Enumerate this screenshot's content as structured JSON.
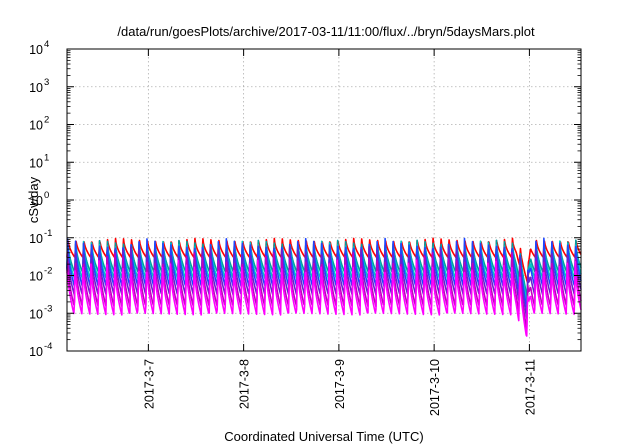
{
  "chart_data": {
    "type": "line",
    "title": "/data/run/goesPlots/archive/2017-03-11/11:00/flux/../bryn/5daysMars.plot",
    "xlabel": "Coordinated Universal Time (UTC)",
    "ylabel": "cSv/day",
    "yscale": "log",
    "ylim": [
      0.0001,
      10000
    ],
    "xlim": [
      "2017-03-06 03:30",
      "2017-03-11 13:00"
    ],
    "grid": true,
    "legend": "none",
    "x_ticks": [
      {
        "date": "2017-03-07",
        "label": "2017-3-7"
      },
      {
        "date": "2017-03-08",
        "label": "2017-3-8"
      },
      {
        "date": "2017-03-09",
        "label": "2017-3-9"
      },
      {
        "date": "2017-03-10",
        "label": "2017-3-10"
      },
      {
        "date": "2017-03-11",
        "label": "2017-3-11"
      }
    ],
    "y_ticks": [
      {
        "value": 0.0001,
        "base": "10",
        "exp": "-4"
      },
      {
        "value": 0.001,
        "base": "10",
        "exp": "-3"
      },
      {
        "value": 0.01,
        "base": "10",
        "exp": "-2"
      },
      {
        "value": 0.1,
        "base": "10",
        "exp": "-1"
      },
      {
        "value": 1,
        "base": "10",
        "exp": "0"
      },
      {
        "value": 10,
        "base": "10",
        "exp": "1"
      },
      {
        "value": 100,
        "base": "10",
        "exp": "2"
      },
      {
        "value": 1000,
        "base": "10",
        "exp": "3"
      },
      {
        "value": 10000,
        "base": "10",
        "exp": "4"
      }
    ],
    "pattern": {
      "cycles_per_day": 12,
      "dip_date": "2017-03-10 23:40",
      "dip_factor": 0.2
    },
    "series": [
      {
        "color": "#ff0000",
        "peak": 0.1,
        "trough": 0.03
      },
      {
        "color": "#00a0a0",
        "peak": 0.09,
        "trough": 0.012
      },
      {
        "color": "#00c8c8",
        "peak": 0.085,
        "trough": 0.008
      },
      {
        "color": "#1e46ff",
        "peak": 0.1,
        "trough": 0.005
      },
      {
        "color": "#6a1fd0",
        "peak": 0.06,
        "trough": 0.003
      },
      {
        "color": "#c000c0",
        "peak": 0.04,
        "trough": 0.0015
      },
      {
        "color": "#ff00ff",
        "peak": 0.025,
        "trough": 0.0009
      }
    ]
  }
}
